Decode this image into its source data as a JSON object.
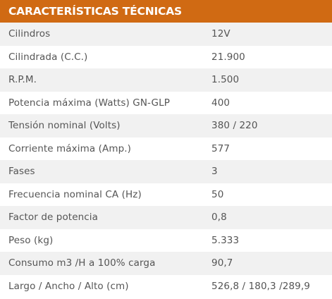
{
  "header": {
    "title": "CARACTERÍSTICAS TÉCNICAS"
  },
  "colors": {
    "header_bg": "#d06a13",
    "row_odd": "#f1f1f1",
    "row_even": "#ffffff",
    "text": "#555555"
  },
  "rows": [
    {
      "label": "Cilindros",
      "value": "12V"
    },
    {
      "label": "Cilindrada (C.C.)",
      "value": "21.900"
    },
    {
      "label": "R.P.M.",
      "value": "1.500"
    },
    {
      "label": "Potencia máxima (Watts) GN-GLP",
      "value": "400"
    },
    {
      "label": "Tensión nominal (Volts)",
      "value": "380 / 220"
    },
    {
      "label": "Corriente máxima (Amp.)",
      "value": "577"
    },
    {
      "label": "Fases",
      "value": "3"
    },
    {
      "label": "Frecuencia nominal CA (Hz)",
      "value": "50"
    },
    {
      "label": "Factor de potencia",
      "value": "0,8"
    },
    {
      "label": "Peso (kg)",
      "value": "5.333"
    },
    {
      "label": "Consumo m3 /H a 100% carga",
      "value": "90,7"
    },
    {
      "label": "Largo / Ancho / Alto (cm)",
      "value": "526,8 / 180,3 /289,9"
    }
  ]
}
